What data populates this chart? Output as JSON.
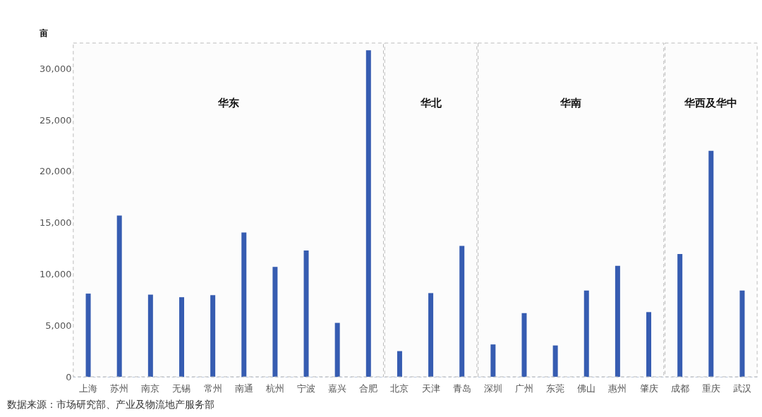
{
  "chart_data": {
    "type": "bar",
    "ylabel": "亩",
    "categories": [
      "上海",
      "苏州",
      "南京",
      "无锡",
      "常州",
      "南通",
      "杭州",
      "宁波",
      "嘉兴",
      "合肥",
      "北京",
      "天津",
      "青岛",
      "深圳",
      "广州",
      "东莞",
      "佛山",
      "惠州",
      "肇庆",
      "成都",
      "重庆",
      "武汉"
    ],
    "series": [
      {
        "color": "#2f57b0",
        "values": [
          8100,
          15700,
          8000,
          7750,
          7950,
          14050,
          10700,
          12300,
          5250,
          31800,
          2500,
          8150,
          12750,
          3150,
          6200,
          3050,
          8400,
          10800,
          6300,
          11950,
          22000,
          8400
        ]
      }
    ],
    "ylim": [
      0,
      32500
    ],
    "yticks": [
      0,
      {
        "value": 5000,
        "label": "5,000"
      },
      {
        "value": 10000,
        "label": "10,000"
      },
      {
        "value": 15000,
        "label": "15,000"
      },
      {
        "value": 20000,
        "label": "20,000"
      },
      {
        "value": 25000,
        "label": "25,000"
      },
      {
        "value": 30000,
        "label": "30,000"
      }
    ],
    "grid": false,
    "bands": [
      {
        "axis": "x",
        "from": "上海",
        "to": "合肥",
        "label": "华东",
        "color": "#bbbbbb"
      },
      {
        "axis": "x",
        "from": "北京",
        "to": "青岛",
        "label": "华北",
        "color": "#bbbbbb"
      },
      {
        "axis": "x",
        "from": "深圳",
        "to": "肇庆",
        "label": "华南",
        "color": "#bbbbbb"
      },
      {
        "axis": "x",
        "from": "成都",
        "to": "武汉",
        "label": "华西及华中",
        "color": "#bbbbbb"
      }
    ],
    "annotations": [
      "数据来源：市场研究部、产业及物流地产服务部"
    ]
  }
}
